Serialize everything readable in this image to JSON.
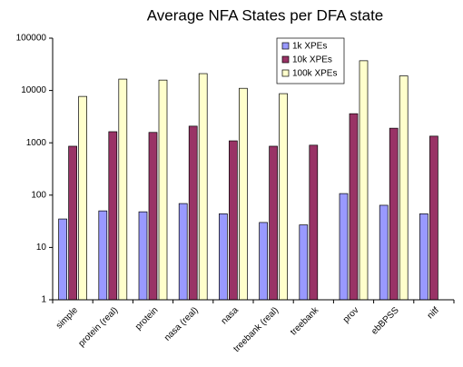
{
  "chart_data": {
    "type": "bar",
    "title": "Average NFA States per DFA state",
    "categories": [
      "simple",
      "protein (real)",
      "protein",
      "nasa (real)",
      "nasa",
      "treebank (real)",
      "treebank",
      "prov",
      "ebBPSS",
      "nitf"
    ],
    "series": [
      {
        "name": "1k XPEs",
        "color": "#9999ff",
        "values": [
          35,
          50,
          48,
          69,
          44,
          30,
          27,
          107,
          64,
          44
        ]
      },
      {
        "name": "10k XPEs",
        "color": "#993366",
        "values": [
          860,
          1630,
          1580,
          2080,
          1090,
          860,
          900,
          3600,
          1900,
          1340
        ]
      },
      {
        "name": "100k XPEs",
        "color": "#ffffcc",
        "values": [
          7700,
          16500,
          15800,
          21000,
          11000,
          8700,
          null,
          37000,
          19000,
          null
        ]
      }
    ],
    "ylim": [
      1,
      100000
    ],
    "yticks": [
      1,
      10,
      100,
      1000,
      10000,
      100000
    ],
    "log": true,
    "grid": false,
    "legend": "top-right"
  }
}
